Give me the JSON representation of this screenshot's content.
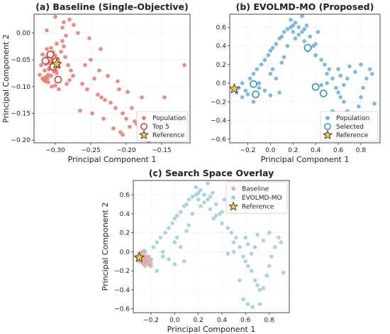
{
  "chart_data": [
    {
      "type": "scatter",
      "title": "(a) Baseline (Single-Objective)",
      "xlabel": "Principal Component 1",
      "ylabel": "Principal Component 2",
      "xlim": [
        -0.33,
        -0.11
      ],
      "ylim": [
        -0.205,
        0.035
      ],
      "xticks": [
        -0.3,
        -0.25,
        -0.2,
        -0.15
      ],
      "xtick_labels": [
        "−0.30",
        "−0.25",
        "−0.20",
        "−0.15"
      ],
      "yticks": [
        0.0,
        -0.05,
        -0.1,
        -0.15,
        -0.2
      ],
      "ytick_labels": [
        "0.00",
        "−0.05",
        "−0.10",
        "−0.15",
        "−0.20"
      ],
      "grid": true,
      "legend_position": "lower-right",
      "series": [
        {
          "name": "Population",
          "kind": "dot",
          "color": "#e8776c",
          "x": [
            -0.318,
            -0.312,
            -0.305,
            -0.3,
            -0.296,
            -0.308,
            -0.315,
            -0.302,
            -0.298,
            -0.31,
            -0.306,
            -0.314,
            -0.309,
            -0.303,
            -0.301,
            -0.297,
            -0.313,
            -0.307,
            -0.304,
            -0.299,
            -0.311,
            -0.316,
            -0.295,
            -0.32,
            -0.3,
            -0.308,
            -0.303,
            -0.312,
            -0.306,
            -0.298,
            -0.29,
            -0.285,
            -0.288,
            -0.292,
            -0.286,
            -0.282,
            -0.278,
            -0.275,
            -0.28,
            -0.284,
            -0.31,
            -0.305,
            -0.3,
            -0.295,
            -0.318,
            -0.314,
            -0.322,
            -0.298,
            -0.31,
            -0.304,
            -0.262,
            -0.245,
            -0.255,
            -0.24,
            -0.235,
            -0.23,
            -0.222,
            -0.215,
            -0.205,
            -0.2,
            -0.195,
            -0.188,
            -0.178,
            -0.212,
            -0.258,
            -0.25,
            -0.238,
            -0.21,
            -0.198,
            -0.226,
            -0.265,
            -0.248,
            -0.232,
            -0.218,
            -0.208,
            -0.192,
            -0.185,
            -0.205,
            -0.168,
            -0.118,
            -0.146,
            -0.252,
            -0.236,
            -0.29,
            -0.288,
            -0.28,
            -0.274,
            -0.268,
            -0.3,
            -0.312
          ],
          "y": [
            -0.04,
            -0.045,
            -0.05,
            -0.055,
            -0.06,
            -0.065,
            -0.07,
            -0.072,
            -0.075,
            -0.078,
            -0.08,
            -0.082,
            -0.068,
            -0.062,
            -0.052,
            -0.048,
            -0.058,
            -0.056,
            -0.066,
            -0.07,
            -0.085,
            -0.088,
            -0.063,
            -0.06,
            -0.042,
            -0.038,
            -0.036,
            -0.03,
            -0.028,
            -0.02,
            -0.015,
            -0.005,
            -0.025,
            -0.035,
            -0.045,
            -0.06,
            -0.07,
            -0.08,
            -0.088,
            -0.095,
            -0.092,
            -0.1,
            -0.098,
            -0.105,
            -0.085,
            -0.09,
            -0.078,
            -0.09,
            -0.055,
            -0.05,
            -0.095,
            -0.085,
            -0.105,
            -0.115,
            -0.12,
            -0.125,
            -0.13,
            -0.14,
            -0.15,
            -0.16,
            -0.175,
            -0.165,
            -0.12,
            -0.09,
            -0.06,
            -0.05,
            -0.07,
            -0.105,
            -0.11,
            -0.08,
            -0.145,
            -0.15,
            -0.16,
            -0.178,
            -0.185,
            -0.14,
            -0.17,
            -0.19,
            -0.205,
            -0.06,
            -0.12,
            -0.01,
            -0.03,
            0.01,
            0.02,
            0.025,
            0.015,
            0.0,
            0.03,
            0.005
          ]
        },
        {
          "name": "Top 5",
          "kind": "ring",
          "color": "#c9372c",
          "x": [
            -0.307,
            -0.314,
            -0.299,
            -0.303,
            -0.296
          ],
          "y": [
            -0.04,
            -0.052,
            -0.053,
            -0.063,
            -0.087
          ]
        },
        {
          "name": "Reference",
          "kind": "star",
          "color": "#f4cc2f",
          "x": [
            -0.298
          ],
          "y": [
            -0.058
          ]
        }
      ]
    },
    {
      "type": "scatter",
      "title": "(b) EVOLMD-MO (Proposed)",
      "xlabel": "Principal Component 1",
      "ylabel": "",
      "xlim": [
        -0.36,
        0.97
      ],
      "ylim": [
        -0.64,
        0.74
      ],
      "xticks": [
        -0.2,
        0.0,
        0.2,
        0.4,
        0.6,
        0.8
      ],
      "xtick_labels": [
        "−0.2",
        "0.0",
        "0.2",
        "0.4",
        "0.6",
        "0.8"
      ],
      "yticks": [
        0.6,
        0.4,
        0.2,
        0.0,
        -0.2,
        -0.4,
        -0.6
      ],
      "ytick_labels": [
        "0.6",
        "0.4",
        "0.2",
        "0.0",
        "−0.2",
        "−0.4",
        "−0.6"
      ],
      "grid": true,
      "legend_position": "lower-right",
      "series": [
        {
          "name": "Population",
          "kind": "dot",
          "color": "#6aaed6",
          "x": [
            -0.3,
            -0.28,
            -0.25,
            -0.22,
            -0.2,
            -0.18,
            -0.15,
            -0.12,
            -0.1,
            -0.08,
            -0.05,
            -0.02,
            0.0,
            0.02,
            0.05,
            0.08,
            0.1,
            0.12,
            0.15,
            0.18,
            0.2,
            0.22,
            0.25,
            0.28,
            0.3,
            0.32,
            0.35,
            0.38,
            0.4,
            0.45,
            0.48,
            0.5,
            0.52,
            0.55,
            0.58,
            0.6,
            0.62,
            0.65,
            0.68,
            0.7,
            0.72,
            0.75,
            0.78,
            0.8,
            0.82,
            0.85,
            0.88,
            0.9,
            0.92,
            -0.1,
            -0.05,
            0.0,
            0.05,
            0.1,
            0.15,
            0.2,
            0.18,
            0.22,
            0.25,
            0.3,
            0.33,
            0.28,
            0.4,
            0.42,
            0.35,
            0.6,
            0.62,
            0.65,
            0.68,
            0.7,
            0.75,
            0.8,
            0.72,
            -0.15,
            -0.25,
            0.08,
            0.12,
            0.55,
            0.58,
            0.62,
            0.66,
            0.5,
            0.45,
            0.0,
            0.02
          ],
          "y": [
            -0.1,
            -0.05,
            0.0,
            -0.08,
            -0.12,
            0.05,
            0.1,
            0.15,
            -0.05,
            0.2,
            0.25,
            0.3,
            0.35,
            0.38,
            0.42,
            0.48,
            0.5,
            0.55,
            0.58,
            0.6,
            0.62,
            0.65,
            0.6,
            0.55,
            0.58,
            0.62,
            0.5,
            0.4,
            0.3,
            0.25,
            0.2,
            0.1,
            0.15,
            0.05,
            -0.05,
            -0.1,
            -0.15,
            -0.2,
            -0.3,
            -0.35,
            -0.4,
            -0.38,
            -0.25,
            -0.15,
            -0.05,
            0.05,
            0.15,
            0.1,
            -0.22,
            0.0,
            -0.08,
            0.1,
            0.05,
            0.22,
            0.4,
            0.55,
            0.68,
            0.48,
            0.52,
            0.45,
            0.35,
            0.72,
            0.42,
            0.55,
            0.38,
            0.15,
            0.08,
            -0.02,
            0.05,
            0.18,
            0.12,
            0.2,
            -0.55,
            -0.2,
            -0.15,
            -0.1,
            0.28,
            -0.3,
            -0.5,
            -0.55,
            -0.58,
            0.0,
            -0.02,
            -0.13,
            0.15
          ]
        },
        {
          "name": "Selected",
          "kind": "ring",
          "color": "#2b8cc4",
          "x": [
            -0.15,
            -0.13,
            0.33,
            0.4,
            0.47
          ],
          "y": [
            -0.01,
            -0.12,
            0.38,
            -0.04,
            -0.11
          ]
        },
        {
          "name": "Reference",
          "kind": "star",
          "color": "#f4cc2f",
          "x": [
            -0.32
          ],
          "y": [
            -0.06
          ]
        }
      ]
    },
    {
      "type": "scatter",
      "title": "(c) Search Space Overlay",
      "xlabel": "Principal Component 1",
      "ylabel": "Principal Component 2",
      "xlim": [
        -0.35,
        0.97
      ],
      "ylim": [
        -0.64,
        0.75
      ],
      "xticks": [
        -0.2,
        0.0,
        0.2,
        0.4,
        0.6,
        0.8
      ],
      "xtick_labels": [
        "−0.2",
        "0.0",
        "0.2",
        "0.4",
        "0.6",
        "0.8"
      ],
      "yticks": [
        0.6,
        0.4,
        0.2,
        0.0,
        -0.2,
        -0.4,
        -0.6
      ],
      "ytick_labels": [
        "0.6",
        "0.4",
        "0.2",
        "0.0",
        "−0.2",
        "−0.4",
        "−0.6"
      ],
      "grid": true,
      "legend_position": "top-right",
      "series": [
        {
          "name": "Baseline",
          "kind": "dot",
          "color": "#f0a39a",
          "x": [
            -0.32,
            -0.31,
            -0.3,
            -0.29,
            -0.28,
            -0.27,
            -0.26,
            -0.25,
            -0.24,
            -0.23,
            -0.22,
            -0.21,
            -0.2,
            -0.3,
            -0.29,
            -0.28,
            -0.27,
            -0.26,
            -0.31,
            -0.3,
            -0.29,
            -0.28,
            -0.25,
            -0.24,
            -0.22,
            -0.2,
            -0.27,
            -0.26,
            -0.23,
            -0.21,
            -0.3,
            -0.28
          ],
          "y": [
            -0.05,
            -0.06,
            -0.04,
            -0.07,
            -0.05,
            -0.08,
            -0.06,
            -0.09,
            -0.1,
            -0.12,
            -0.13,
            -0.14,
            -0.15,
            -0.02,
            -0.01,
            -0.03,
            0.0,
            0.01,
            -0.08,
            -0.1,
            -0.09,
            -0.11,
            -0.04,
            -0.06,
            -0.05,
            -0.08,
            -0.12,
            -0.13,
            -0.1,
            -0.11,
            -0.07,
            -0.06
          ]
        },
        {
          "name": "EVOLMD-MO",
          "kind": "dot",
          "color": "#9ecae1",
          "x": [
            -0.3,
            -0.28,
            -0.25,
            -0.22,
            -0.2,
            -0.18,
            -0.15,
            -0.12,
            -0.1,
            -0.08,
            -0.05,
            -0.02,
            0.0,
            0.02,
            0.05,
            0.08,
            0.1,
            0.12,
            0.15,
            0.18,
            0.2,
            0.22,
            0.25,
            0.28,
            0.3,
            0.32,
            0.35,
            0.38,
            0.4,
            0.45,
            0.48,
            0.5,
            0.52,
            0.55,
            0.58,
            0.6,
            0.62,
            0.65,
            0.68,
            0.7,
            0.72,
            0.75,
            0.78,
            0.8,
            0.82,
            0.85,
            0.88,
            0.9,
            0.92,
            -0.1,
            -0.05,
            0.0,
            0.05,
            0.1,
            0.15,
            0.2,
            0.18,
            0.22,
            0.25,
            0.3,
            0.33,
            0.28,
            0.4,
            0.42,
            0.35,
            0.6,
            0.62,
            0.65,
            0.68,
            0.7,
            0.75,
            0.8,
            0.72,
            -0.15,
            -0.25,
            0.08,
            0.12,
            0.55,
            0.58,
            0.62,
            0.66,
            0.5,
            0.45,
            0.0,
            0.02
          ],
          "y": [
            -0.1,
            -0.05,
            0.0,
            -0.08,
            -0.12,
            0.05,
            0.1,
            0.15,
            -0.05,
            0.2,
            0.25,
            0.3,
            0.35,
            0.38,
            0.42,
            0.48,
            0.5,
            0.55,
            0.58,
            0.6,
            0.62,
            0.65,
            0.6,
            0.55,
            0.58,
            0.62,
            0.5,
            0.4,
            0.3,
            0.25,
            0.2,
            0.1,
            0.15,
            0.05,
            -0.05,
            -0.1,
            -0.15,
            -0.2,
            -0.3,
            -0.35,
            -0.4,
            -0.38,
            -0.25,
            -0.15,
            -0.05,
            0.05,
            0.15,
            0.1,
            -0.22,
            0.0,
            -0.08,
            0.1,
            0.05,
            0.22,
            0.4,
            0.55,
            0.68,
            0.48,
            0.52,
            0.45,
            0.35,
            0.72,
            0.42,
            0.55,
            0.38,
            0.15,
            0.08,
            -0.02,
            0.05,
            0.18,
            0.12,
            0.2,
            -0.55,
            -0.2,
            -0.15,
            -0.1,
            0.28,
            -0.3,
            -0.5,
            -0.55,
            -0.58,
            0.0,
            -0.02,
            -0.13,
            0.15
          ]
        },
        {
          "name": "Reference",
          "kind": "star",
          "color": "#f4cc2f",
          "x": [
            -0.3
          ],
          "y": [
            -0.06
          ]
        }
      ]
    }
  ]
}
